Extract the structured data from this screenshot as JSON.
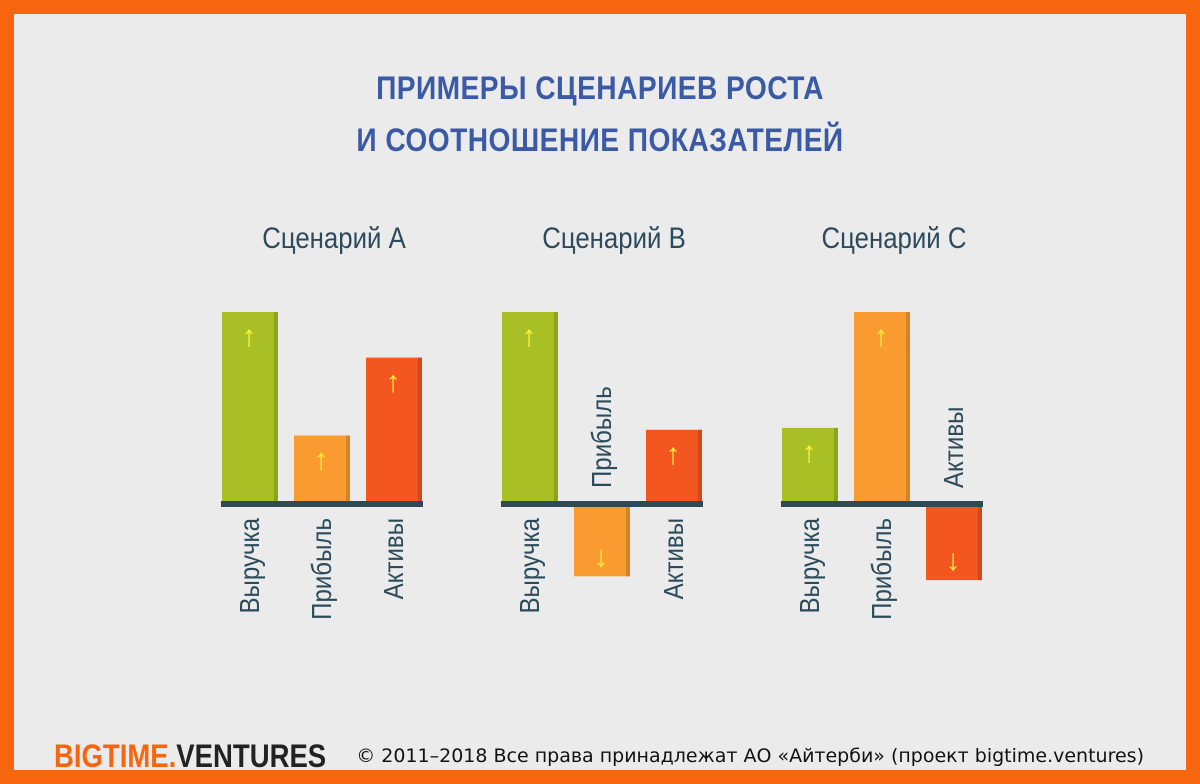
{
  "title": {
    "line1": "ПРИМЕРЫ СЦЕНАРИЕВ РОСТА",
    "line2": "И СООТНОШЕНИЕ ПОКАЗАТЕЛЕЙ"
  },
  "footer": {
    "brand_part1": "BIGTIME.",
    "brand_part2": "VENTURES",
    "copyright": "© 2011–2018 Все права принадлежат АО «Айтерби» (проект bigtime.ventures)"
  },
  "colors": {
    "background": "#ebebeb",
    "border": "#f7650f",
    "title": "#3b5aa5",
    "revenue": "#a8bf25",
    "profit": "#f99b30",
    "assets": "#f3561e",
    "arrow": "#fff23a",
    "baseline": "#2f4a55"
  },
  "chart_data": [
    {
      "type": "bar",
      "title": "Сценарий A",
      "categories": [
        "Выручка",
        "Прибыль",
        "Активы"
      ],
      "values": [
        100,
        35,
        76
      ],
      "directions": [
        "up",
        "up",
        "up"
      ],
      "arrow_glyphs": [
        "↑",
        "↑",
        "↑"
      ]
    },
    {
      "type": "bar",
      "title": "Сценарий B",
      "categories": [
        "Выручка",
        "Прибыль",
        "Активы"
      ],
      "values": [
        100,
        -37,
        38
      ],
      "directions": [
        "up",
        "down",
        "up"
      ],
      "arrow_glyphs": [
        "↑",
        "↓",
        "↑"
      ]
    },
    {
      "type": "bar",
      "title": "Сценарий C",
      "categories": [
        "Выручка",
        "Прибыль",
        "Активы"
      ],
      "values": [
        39,
        100,
        -39
      ],
      "directions": [
        "up",
        "up",
        "down"
      ],
      "arrow_glyphs": [
        "↑",
        "↑",
        "↓"
      ]
    }
  ]
}
